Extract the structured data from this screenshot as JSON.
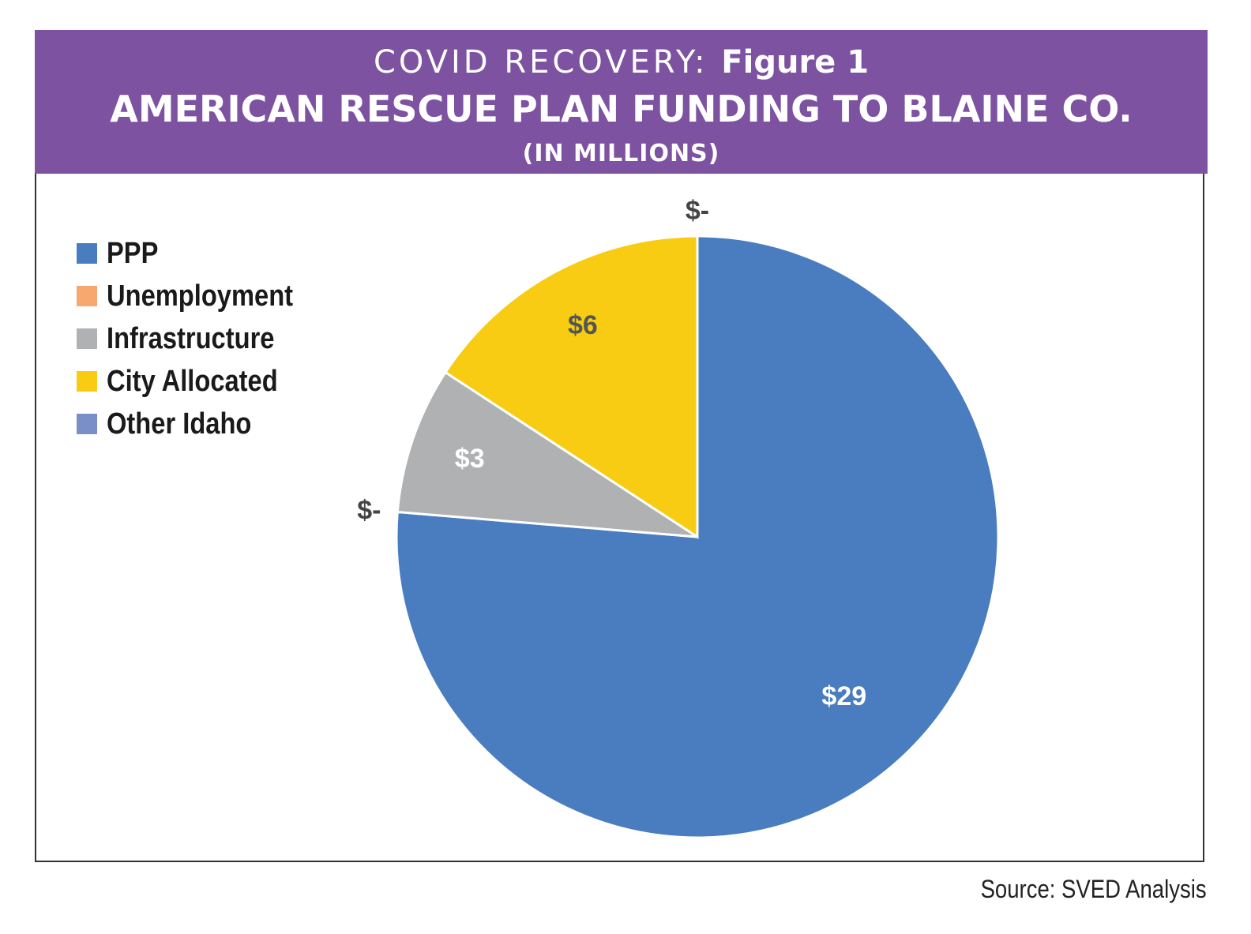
{
  "header": {
    "kicker": "COVID RECOVERY:",
    "figure": "Figure 1",
    "title": "AMERICAN RESCUE PLAN FUNDING TO BLAINE CO.",
    "subtitle": "(IN MILLIONS)"
  },
  "source": "Source: SVED Analysis",
  "colors": {
    "header_bg": "#7d52a1",
    "PPP": "#4a7dbf",
    "Unemployment": "#f7a86f",
    "Infrastructure": "#b0b1b3",
    "City Allocated": "#f8cc12",
    "Other Idaho": "#7a8fc8"
  },
  "chart_data": {
    "type": "pie",
    "title": "AMERICAN RESCUE PLAN FUNDING TO BLAINE CO.",
    "subtitle": "(IN MILLIONS)",
    "legend_position": "left",
    "slices": [
      {
        "name": "PPP",
        "value": 29,
        "label": "$29",
        "color": "#4a7dbf",
        "label_color": "#ffffff"
      },
      {
        "name": "Unemployment",
        "value": 0,
        "label": "$-",
        "color": "#f7a86f",
        "label_color": "#444444"
      },
      {
        "name": "Infrastructure",
        "value": 3,
        "label": "$3",
        "color": "#b0b1b3",
        "label_color": "#ffffff"
      },
      {
        "name": "City Allocated",
        "value": 6,
        "label": "$6",
        "color": "#f8cc12",
        "label_color": "#555555"
      },
      {
        "name": "Other Idaho",
        "value": 0,
        "label": "$-",
        "color": "#7a8fc8",
        "label_color": "#444444"
      }
    ]
  }
}
